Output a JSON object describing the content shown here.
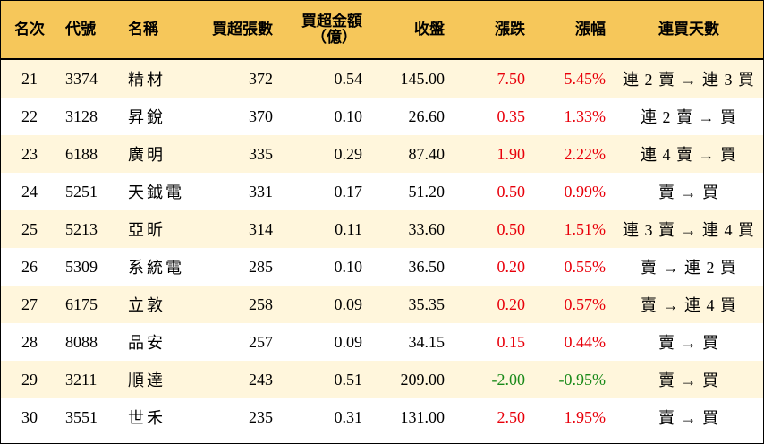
{
  "headers": {
    "rank": "名次",
    "code": "代號",
    "name": "名稱",
    "buy_lots": "買超張數",
    "buy_amount_line1": "買超金額",
    "buy_amount_line2": "（億）",
    "close": "收盤",
    "change": "漲跌",
    "change_pct": "漲幅",
    "streak": "連買天數"
  },
  "colors": {
    "header_bg": "#f6c75a",
    "row_alt_bg": "#fff6dc",
    "up": "#e8000b",
    "down": "#1a8a1a"
  },
  "rows": [
    {
      "rank": "21",
      "code": "3374",
      "name": "精材",
      "buy_lots": "372",
      "buy_amount": "0.54",
      "close": "145.00",
      "change": "7.50",
      "change_pct": "5.45%",
      "streak": "連 2 賣 → 連 3 買",
      "direction": "up"
    },
    {
      "rank": "22",
      "code": "3128",
      "name": "昇銳",
      "buy_lots": "370",
      "buy_amount": "0.10",
      "close": "26.60",
      "change": "0.35",
      "change_pct": "1.33%",
      "streak": "連 2 賣 → 買",
      "direction": "up"
    },
    {
      "rank": "23",
      "code": "6188",
      "name": "廣明",
      "buy_lots": "335",
      "buy_amount": "0.29",
      "close": "87.40",
      "change": "1.90",
      "change_pct": "2.22%",
      "streak": "連 4 賣 → 買",
      "direction": "up"
    },
    {
      "rank": "24",
      "code": "5251",
      "name": "天鉞電",
      "buy_lots": "331",
      "buy_amount": "0.17",
      "close": "51.20",
      "change": "0.50",
      "change_pct": "0.99%",
      "streak": "賣 → 買",
      "direction": "up"
    },
    {
      "rank": "25",
      "code": "5213",
      "name": "亞昕",
      "buy_lots": "314",
      "buy_amount": "0.11",
      "close": "33.60",
      "change": "0.50",
      "change_pct": "1.51%",
      "streak": "連 3 賣 → 連 4 買",
      "direction": "up"
    },
    {
      "rank": "26",
      "code": "5309",
      "name": "系統電",
      "buy_lots": "285",
      "buy_amount": "0.10",
      "close": "36.50",
      "change": "0.20",
      "change_pct": "0.55%",
      "streak": "賣 → 連 2 買",
      "direction": "up"
    },
    {
      "rank": "27",
      "code": "6175",
      "name": "立敦",
      "buy_lots": "258",
      "buy_amount": "0.09",
      "close": "35.35",
      "change": "0.20",
      "change_pct": "0.57%",
      "streak": "賣 → 連 4 買",
      "direction": "up"
    },
    {
      "rank": "28",
      "code": "8088",
      "name": "品安",
      "buy_lots": "257",
      "buy_amount": "0.09",
      "close": "34.15",
      "change": "0.15",
      "change_pct": "0.44%",
      "streak": "賣 → 買",
      "direction": "up"
    },
    {
      "rank": "29",
      "code": "3211",
      "name": "順達",
      "buy_lots": "243",
      "buy_amount": "0.51",
      "close": "209.00",
      "change": "-2.00",
      "change_pct": "-0.95%",
      "streak": "賣 → 買",
      "direction": "down"
    },
    {
      "rank": "30",
      "code": "3551",
      "name": "世禾",
      "buy_lots": "235",
      "buy_amount": "0.31",
      "close": "131.00",
      "change": "2.50",
      "change_pct": "1.95%",
      "streak": "賣 → 買",
      "direction": "up"
    }
  ]
}
